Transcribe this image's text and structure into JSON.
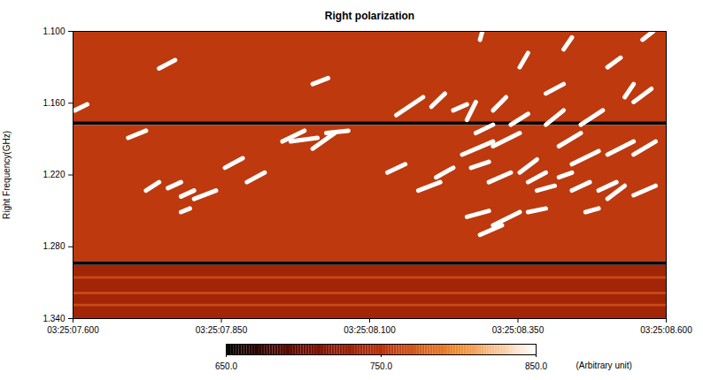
{
  "chart_data": {
    "type": "heatmap",
    "title": "Right polarization",
    "y_label": "Right Frequency(GHz)",
    "xlim": [
      7.6,
      8.6
    ],
    "xticks": [
      {
        "value": 7.6,
        "label": "03:25:07.600"
      },
      {
        "value": 7.85,
        "label": "03:25:07.850"
      },
      {
        "value": 8.1,
        "label": "03:25:08.100"
      },
      {
        "value": 8.35,
        "label": "03:25:08.350"
      },
      {
        "value": 8.6,
        "label": "03:25:08.600"
      }
    ],
    "ylim": [
      1.1,
      1.34
    ],
    "yticks": [
      {
        "value": 1.1,
        "label": "1.100"
      },
      {
        "value": 1.16,
        "label": "1.160"
      },
      {
        "value": 1.22,
        "label": "1.220"
      },
      {
        "value": 1.28,
        "label": "1.280"
      },
      {
        "value": 1.34,
        "label": "1.340"
      }
    ],
    "bands": [
      [
        1.1,
        1.1755,
        755
      ],
      [
        1.1755,
        1.1785,
        650
      ],
      [
        1.1785,
        1.2925,
        755
      ],
      [
        1.2925,
        1.2955,
        650
      ],
      [
        1.2955,
        1.34,
        735
      ],
      [
        1.305,
        1.307,
        765
      ],
      [
        1.318,
        1.32,
        765
      ],
      [
        1.328,
        1.33,
        765
      ]
    ],
    "bursts": {
      "value": 850,
      "segments": [
        [
          7.603,
          1.166,
          7.624,
          1.161
        ],
        [
          7.745,
          1.131,
          7.772,
          1.124
        ],
        [
          7.693,
          1.189,
          7.723,
          1.183
        ],
        [
          7.723,
          1.233,
          7.745,
          1.226
        ],
        [
          7.76,
          1.231,
          7.782,
          1.226
        ],
        [
          7.782,
          1.238,
          7.804,
          1.233
        ],
        [
          7.804,
          1.24,
          7.841,
          1.233
        ],
        [
          7.782,
          1.251,
          7.797,
          1.248
        ],
        [
          7.856,
          1.214,
          7.886,
          1.206
        ],
        [
          7.893,
          1.226,
          7.923,
          1.218
        ],
        [
          7.953,
          1.192,
          7.99,
          1.183
        ],
        [
          7.967,
          1.192,
          8.012,
          1.189
        ],
        [
          8.004,
          1.198,
          8.041,
          1.185
        ],
        [
          8.027,
          1.185,
          8.064,
          1.183
        ],
        [
          8.004,
          1.144,
          8.03,
          1.139
        ],
        [
          8.13,
          1.218,
          8.16,
          1.211
        ],
        [
          8.182,
          1.233,
          8.219,
          1.226
        ],
        [
          8.212,
          1.222,
          8.241,
          1.214
        ],
        [
          8.145,
          1.17,
          8.19,
          1.155
        ],
        [
          8.204,
          1.163,
          8.227,
          1.152
        ],
        [
          8.241,
          1.166,
          8.264,
          1.161
        ],
        [
          8.264,
          1.174,
          8.279,
          1.159
        ],
        [
          8.279,
          1.185,
          8.308,
          1.178
        ],
        [
          8.308,
          1.196,
          8.353,
          1.185
        ],
        [
          8.256,
          1.203,
          8.308,
          1.192
        ],
        [
          8.271,
          1.214,
          8.301,
          1.209
        ],
        [
          8.301,
          1.226,
          8.338,
          1.218
        ],
        [
          8.353,
          1.218,
          8.382,
          1.207
        ],
        [
          8.367,
          1.226,
          8.397,
          1.218
        ],
        [
          8.382,
          1.233,
          8.412,
          1.229
        ],
        [
          8.419,
          1.222,
          8.441,
          1.218
        ],
        [
          8.441,
          1.211,
          8.486,
          1.2
        ],
        [
          8.441,
          1.233,
          8.471,
          1.226
        ],
        [
          8.486,
          1.233,
          8.516,
          1.226
        ],
        [
          8.501,
          1.24,
          8.53,
          1.229
        ],
        [
          8.545,
          1.237,
          8.582,
          1.229
        ],
        [
          8.264,
          1.255,
          8.301,
          1.25
        ],
        [
          8.286,
          1.27,
          8.323,
          1.262
        ],
        [
          8.308,
          1.262,
          8.353,
          1.251
        ],
        [
          8.367,
          1.251,
          8.397,
          1.248
        ],
        [
          8.464,
          1.251,
          8.486,
          1.248
        ],
        [
          8.308,
          1.166,
          8.33,
          1.155
        ],
        [
          8.397,
          1.178,
          8.427,
          1.166
        ],
        [
          8.419,
          1.196,
          8.456,
          1.185
        ],
        [
          8.456,
          1.178,
          8.493,
          1.166
        ],
        [
          8.501,
          1.203,
          8.545,
          1.192
        ],
        [
          8.545,
          1.203,
          8.582,
          1.192
        ],
        [
          8.545,
          1.159,
          8.575,
          1.148
        ],
        [
          8.501,
          1.13,
          8.523,
          1.122
        ],
        [
          8.427,
          1.115,
          8.441,
          1.105
        ],
        [
          8.53,
          1.155,
          8.545,
          1.144
        ],
        [
          8.353,
          1.13,
          8.367,
          1.118
        ],
        [
          8.286,
          1.107,
          8.29,
          1.1
        ],
        [
          8.56,
          1.107,
          8.578,
          1.1
        ],
        [
          8.397,
          1.152,
          8.427,
          1.144
        ],
        [
          8.338,
          1.178,
          8.367,
          1.169
        ]
      ]
    },
    "color_bar": {
      "range": [
        650,
        850
      ],
      "ticks": [
        {
          "value": 650,
          "label": "650.0"
        },
        {
          "value": 750,
          "label": "750.0"
        },
        {
          "value": 850,
          "label": "850.0"
        }
      ],
      "label": "(Arbitrary unit)"
    }
  }
}
